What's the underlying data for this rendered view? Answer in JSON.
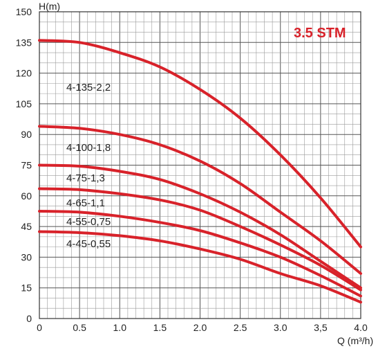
{
  "chart_data": {
    "type": "line",
    "title": "3.5 STM",
    "xlabel": "Q (m³/h)",
    "ylabel": "H(m)",
    "xlim": [
      0,
      4.0
    ],
    "ylim": [
      0,
      150
    ],
    "x_ticks": [
      "0",
      "0.5",
      "1.0",
      "1.5",
      "2.0",
      "2.5",
      "3.0",
      "3,5",
      "4.0"
    ],
    "y_ticks": [
      "0",
      "15",
      "30",
      "45",
      "60",
      "75",
      "90",
      "105",
      "120",
      "135",
      "150"
    ],
    "grid": true,
    "curve_color": "#d8222a",
    "series": [
      {
        "name": "4-135-2,2",
        "x": [
          0,
          0.5,
          1.0,
          1.5,
          2.0,
          2.5,
          3.0,
          3.5,
          4.0
        ],
        "y": [
          136,
          135,
          130,
          123,
          112,
          98,
          80,
          59,
          35
        ]
      },
      {
        "name": "4-100-1,8",
        "x": [
          0,
          0.5,
          1.0,
          1.5,
          2.0,
          2.5,
          3.0,
          3.5,
          4.0
        ],
        "y": [
          94,
          93,
          90,
          85,
          77,
          66,
          52,
          38,
          22
        ]
      },
      {
        "name": "4-75-1,3",
        "x": [
          0,
          0.5,
          1.0,
          1.5,
          2.0,
          2.5,
          3.0,
          3.5,
          4.0
        ],
        "y": [
          75,
          74.5,
          72,
          68,
          61,
          52,
          41,
          28,
          15
        ]
      },
      {
        "name": "4-65-1,1",
        "x": [
          0,
          0.5,
          1.0,
          1.5,
          2.0,
          2.5,
          3.0,
          3.5,
          4.0
        ],
        "y": [
          63.5,
          63,
          61,
          58,
          53,
          45,
          36,
          26,
          14
        ]
      },
      {
        "name": "4-55-0,75",
        "x": [
          0,
          0.5,
          1.0,
          1.5,
          2.0,
          2.5,
          3.0,
          3.5,
          4.0
        ],
        "y": [
          52.5,
          52,
          50,
          47,
          43,
          37,
          30,
          21,
          11
        ]
      },
      {
        "name": "4-45-0,55",
        "x": [
          0,
          0.5,
          1.0,
          1.5,
          2.0,
          2.5,
          3.0,
          3.5,
          4.0
        ],
        "y": [
          42.5,
          42,
          40.5,
          38,
          34,
          29,
          22,
          16,
          8
        ]
      }
    ]
  }
}
